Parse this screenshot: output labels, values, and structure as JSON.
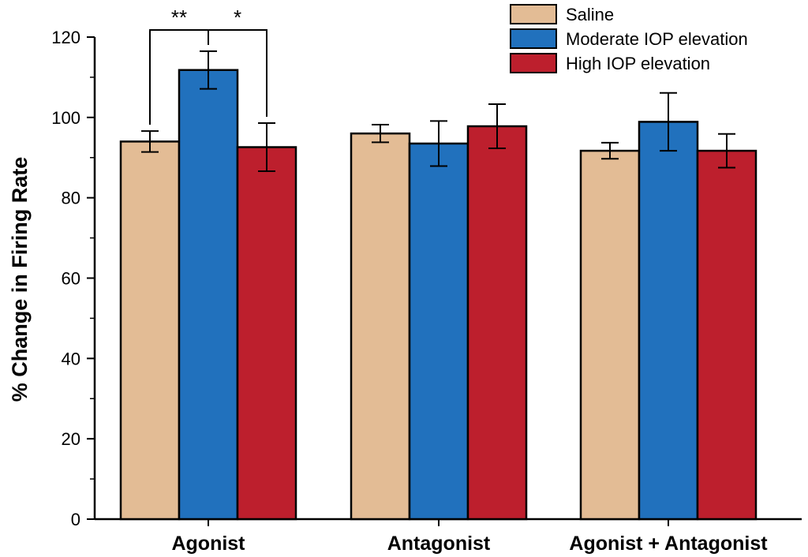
{
  "chart_data": {
    "type": "bar",
    "title": "",
    "xlabel": "",
    "ylabel": "% Change in Firing Rate",
    "ylim": [
      0,
      120
    ],
    "yticks": [
      0,
      20,
      40,
      60,
      80,
      100,
      120
    ],
    "grid": false,
    "legend_position": "top-right",
    "categories": [
      "Agonist",
      "Antagonist",
      "Agonist + Antagonist"
    ],
    "series": [
      {
        "name": "Saline",
        "color": "#e3bc95",
        "values": [
          94,
          96,
          91.7
        ],
        "errors": [
          2.6,
          2.2,
          2
        ]
      },
      {
        "name": "Moderate IOP elevation",
        "color": "#2171bd",
        "values": [
          111.8,
          93.5,
          98.9
        ],
        "errors": [
          4.7,
          5.6,
          7.2
        ]
      },
      {
        "name": "High IOP elevation",
        "color": "#bd1f2d",
        "values": [
          92.6,
          97.8,
          91.7
        ],
        "errors": [
          6,
          5.5,
          4.2
        ]
      }
    ],
    "annotations": [
      {
        "label": "**",
        "category": "Agonist",
        "from_series": 0,
        "to_series": 1,
        "kind": "significance-bracket"
      },
      {
        "label": "*",
        "category": "Agonist",
        "from_series": 1,
        "to_series": 2,
        "kind": "significance-bracket"
      }
    ]
  }
}
